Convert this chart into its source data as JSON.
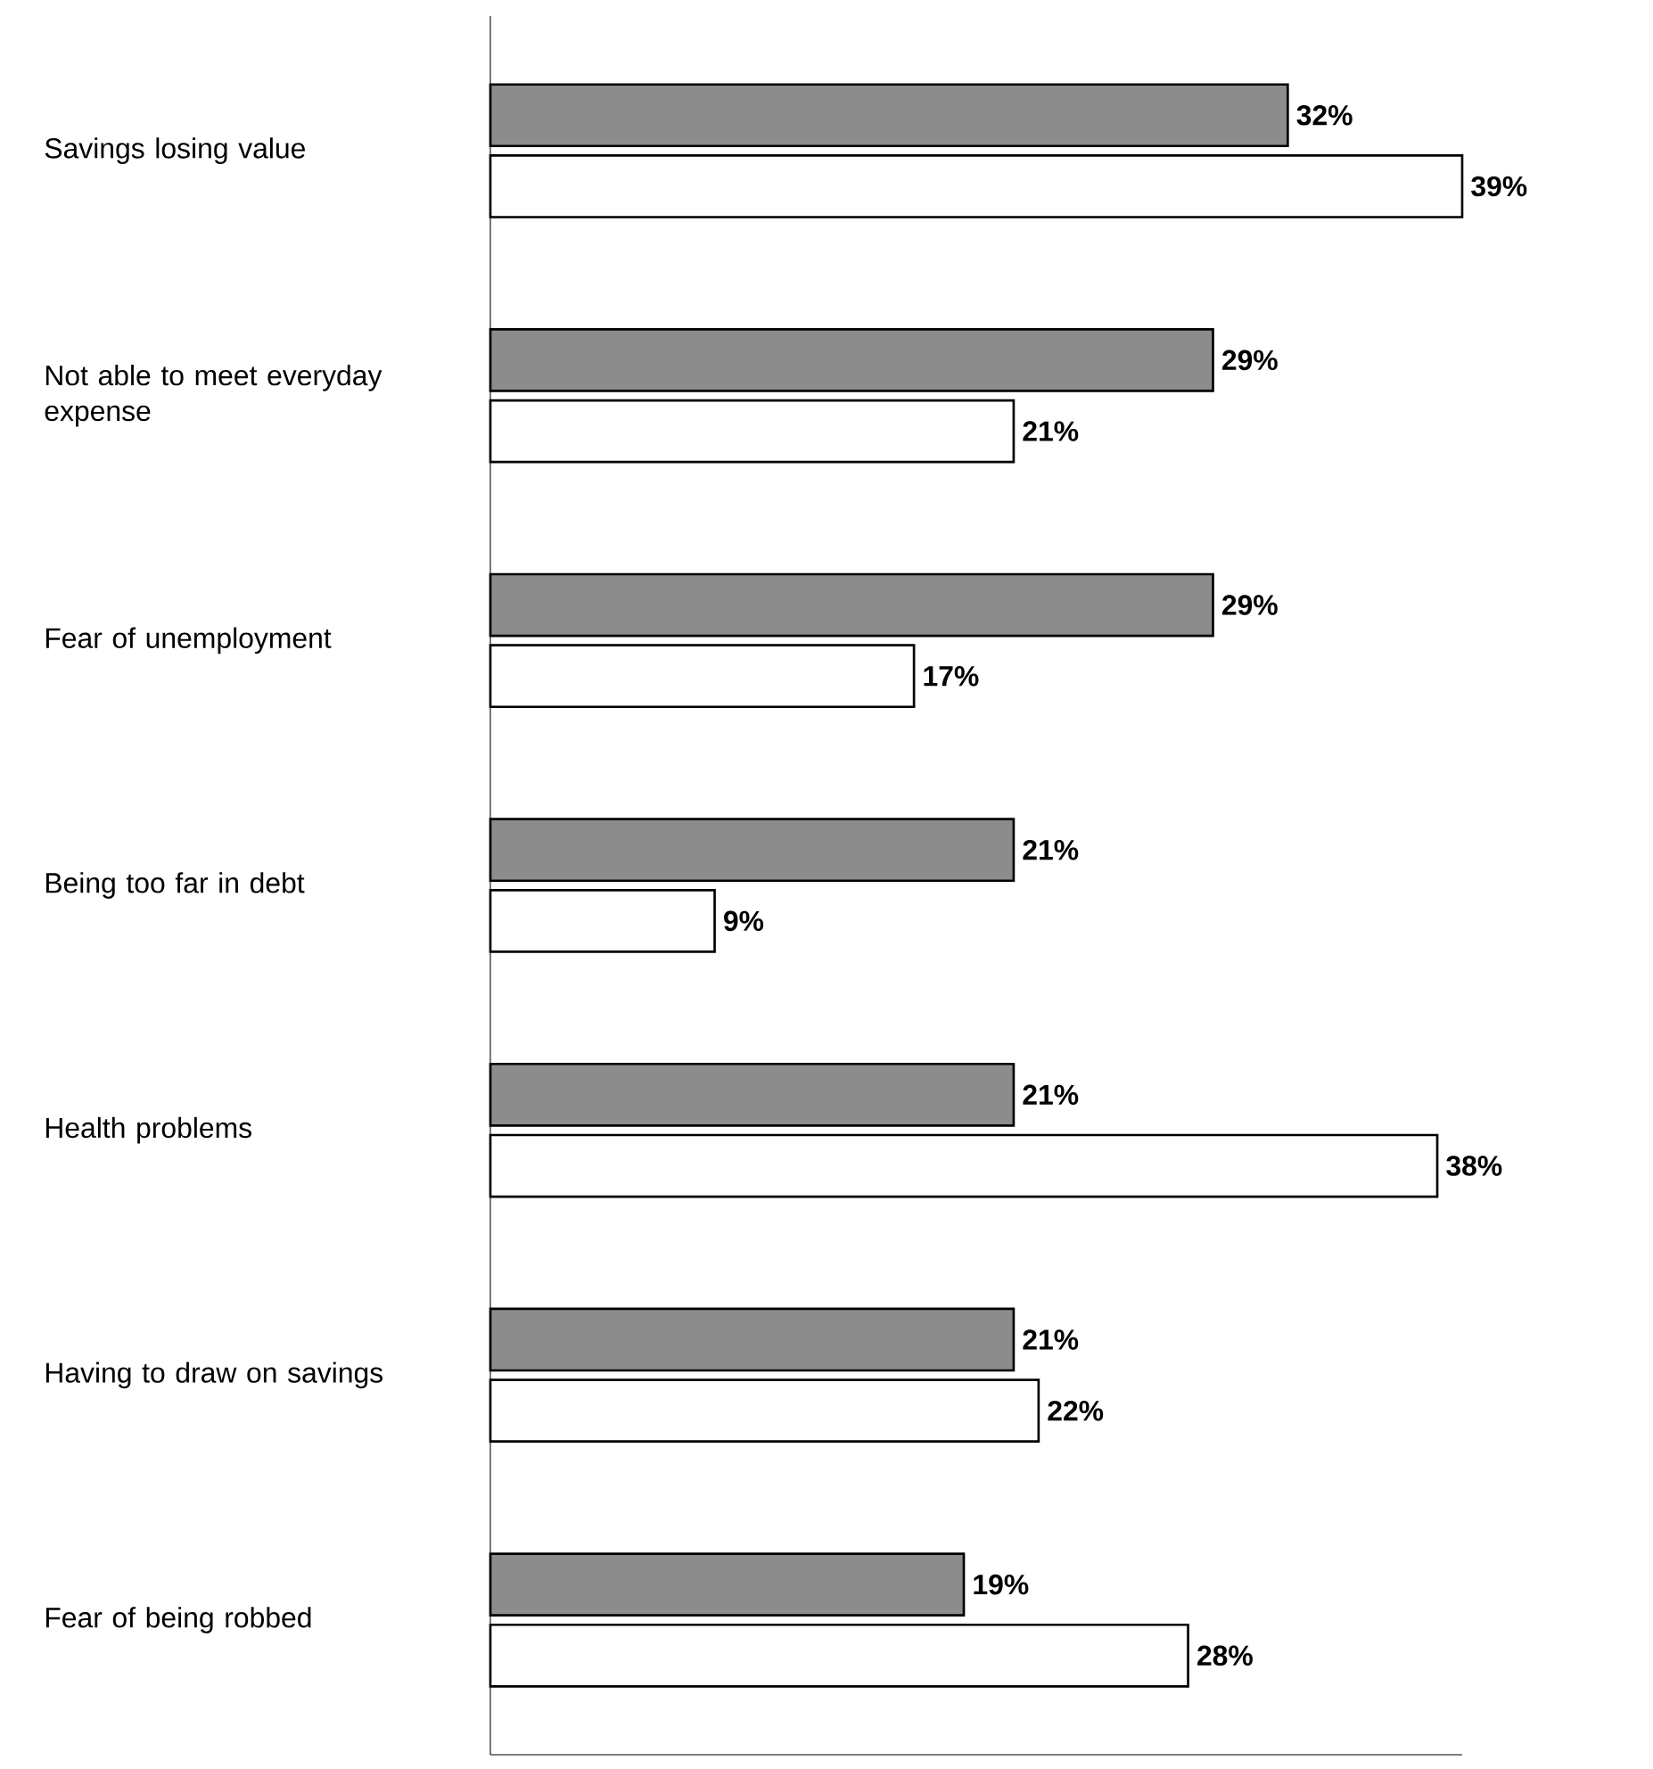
{
  "chart_data": {
    "type": "bar",
    "orientation": "horizontal",
    "categories": [
      "Savings losing value",
      "Not able to meet everyday expense",
      "Fear of unemployment",
      "Being too far in debt",
      "Health problems",
      "Having to draw on savings",
      "Fear of being robbed"
    ],
    "series": [
      {
        "color": "#8c8c8c",
        "values": [
          32,
          29,
          29,
          21,
          21,
          21,
          19
        ],
        "value_labels": [
          "32%",
          "29%",
          "29%",
          "21%",
          "21%",
          "21%",
          "19%"
        ]
      },
      {
        "color": "#ffffff",
        "values": [
          39,
          21,
          17,
          9,
          38,
          22,
          28
        ],
        "value_labels": [
          "39%",
          "21%",
          "17%",
          "9%",
          "38%",
          "22%",
          "28%"
        ]
      }
    ]
  }
}
